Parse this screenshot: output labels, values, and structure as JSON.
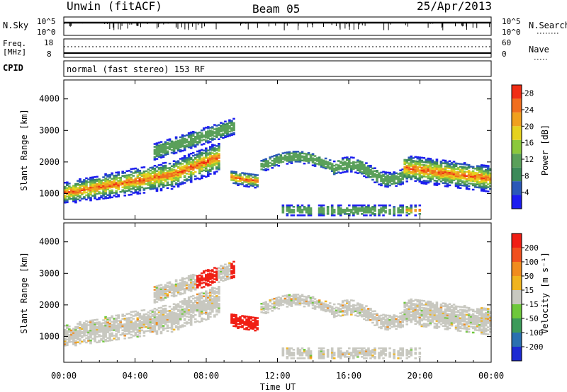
{
  "header": {
    "title": "Unwin (fitACF)",
    "beam": "Beam 05",
    "date": "25/Apr/2013"
  },
  "top_panel": {
    "left_label": "N.Sky",
    "right_label": "N.Search",
    "y_ticks": [
      "10^5",
      "10^0"
    ],
    "right_ticks": [
      "10^5",
      "10^0"
    ]
  },
  "freq_panel": {
    "left_label_line1": "Freq.",
    "left_label_line2": "[MHz]",
    "y_ticks": [
      "18",
      "8"
    ],
    "right_label": "Nave",
    "right_ticks": [
      "60",
      "0"
    ]
  },
  "cpid_panel": {
    "label": "CPID",
    "text": "normal (fast stereo) 153 RF"
  },
  "colors": {
    "power_scale": [
      "#1c1cf0",
      "#2a58b8",
      "#3c8a5a",
      "#5aa05a",
      "#8cc83c",
      "#e6d21e",
      "#f0a01e",
      "#f06e1e",
      "#f02d14"
    ],
    "velocity_scale": [
      "#1c2ad2",
      "#2a70b0",
      "#3c9a5a",
      "#6ec83c",
      "#c8c8c0",
      "#f0b41e",
      "#f08c1e",
      "#f0501e",
      "#f01e14"
    ]
  },
  "chart_data": [
    {
      "type": "heatmap",
      "name": "power",
      "ylabel": "Slant Range [km]",
      "y_ticks": [
        1000,
        2000,
        3000,
        4000
      ],
      "ylim": [
        180,
        4600
      ],
      "x_ticks": [
        "00:00",
        "04:00",
        "08:00",
        "12:00",
        "16:00",
        "20:00",
        "00:00"
      ],
      "xlim_hours": [
        0,
        24
      ],
      "colorbar_label": "Power [dB]",
      "colorbar_ticks": [
        "4",
        "8",
        "12",
        "16",
        "20",
        "24",
        "28"
      ],
      "colorbar_range": [
        0,
        30
      ]
    },
    {
      "type": "heatmap",
      "name": "velocity",
      "ylabel": "Slant Range [km]",
      "y_ticks": [
        1000,
        2000,
        3000,
        4000
      ],
      "ylim": [
        180,
        4600
      ],
      "x_ticks": [
        "00:00",
        "04:00",
        "08:00",
        "12:00",
        "16:00",
        "20:00",
        "00:00"
      ],
      "xlim_hours": [
        0,
        24
      ],
      "xlabel": "Time UT",
      "colorbar_label": "Velocity [m s⁻¹]",
      "colorbar_ticks": [
        "200",
        "100",
        "50",
        "15",
        "-15",
        "-50",
        "-100",
        "-200"
      ]
    }
  ]
}
